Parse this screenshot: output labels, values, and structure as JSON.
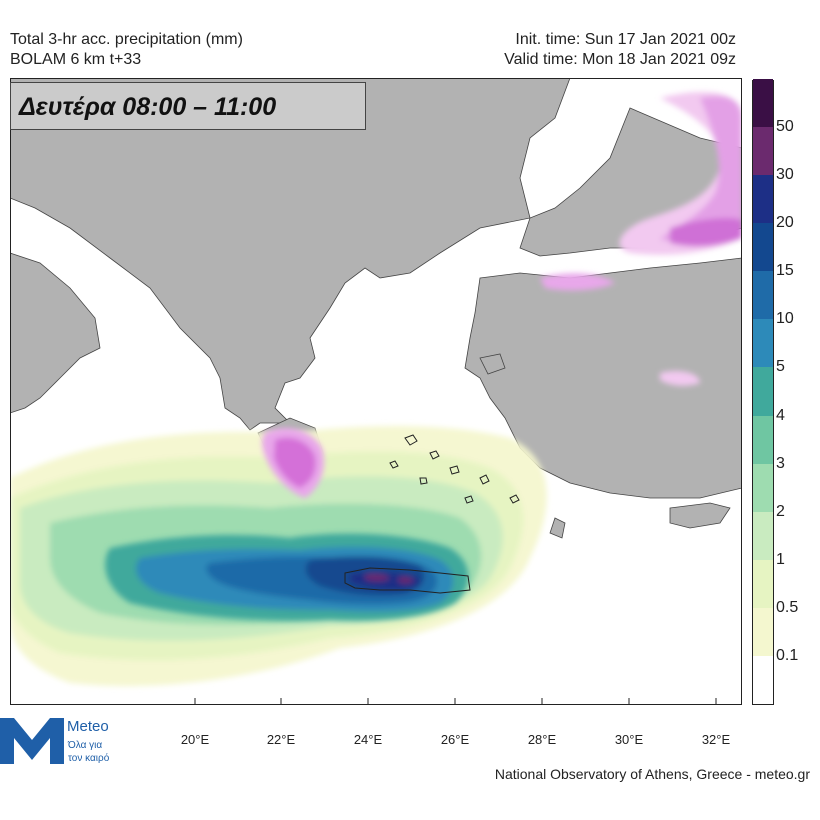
{
  "header": {
    "title_line1": "Total 3-hr acc. precipitation (mm)",
    "title_line2": "BOLAM 6 km t+33",
    "init_time": "Init. time: Sun 17 Jan 2021 00z",
    "valid_time": "Valid time: Mon 18 Jan 2021 09z"
  },
  "day_label": "Δευτέρα 08:00 – 11:00",
  "colorbar": {
    "levels": [
      "0.1",
      "0.5",
      "1",
      "2",
      "3",
      "4",
      "5",
      "10",
      "15",
      "20",
      "30",
      "50"
    ],
    "colors": [
      "#ffffff",
      "#f4f7cf",
      "#e6f4c2",
      "#c9ebc0",
      "#9edcb0",
      "#6fc6a2",
      "#40a99c",
      "#2d8ab9",
      "#1f6ba8",
      "#13488f",
      "#1d2f86",
      "#6b2a6e",
      "#3a0f45"
    ]
  },
  "longitude_labels": [
    "20°E",
    "22°E",
    "24°E",
    "26°E",
    "28°E",
    "30°E",
    "32°E"
  ],
  "logo": {
    "brand": "Meteo",
    "tagline_line1": "Όλα για",
    "tagline_line2": "τον καιρό"
  },
  "footer": "National Observatory of Athens, Greece - meteo.gr"
}
